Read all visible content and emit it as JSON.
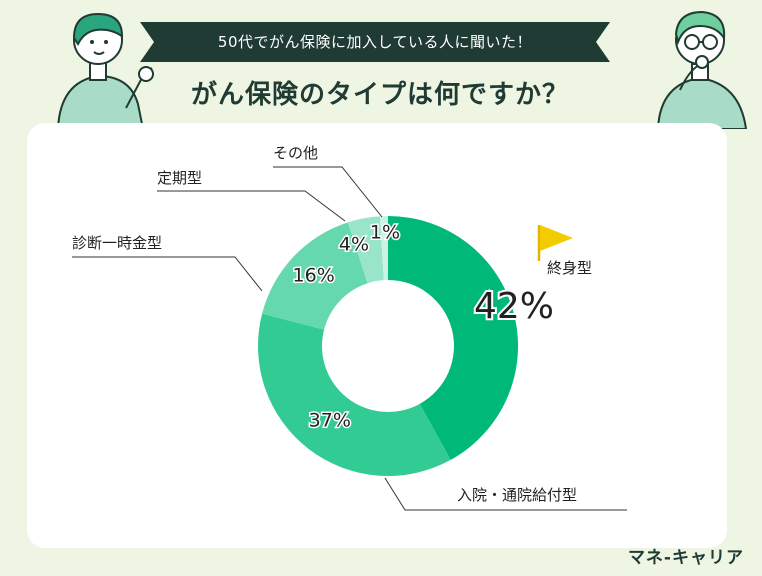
{
  "header": {
    "banner": "50代でがん保険に加入している人に聞いた！",
    "title": "がん保険のタイプは何ですか？"
  },
  "brand": "マネ-キャリア",
  "colors": {
    "background": "#eef5e2",
    "banner": "#1f3b33",
    "series": [
      "#00b877",
      "#33cb94",
      "#66d8ae",
      "#99e5c9",
      "#ccf2e4"
    ]
  },
  "chart_data": {
    "type": "pie",
    "style": "donut",
    "categories": [
      "終身型",
      "入院・通院給付型",
      "診断一時金型",
      "定期型",
      "その他"
    ],
    "values": [
      42,
      37,
      16,
      4,
      1
    ],
    "value_labels": [
      "42%",
      "37%",
      "16%",
      "4%",
      "1%"
    ],
    "highlight": "終身型",
    "highlight_icon": "yellow-flag-icon"
  }
}
